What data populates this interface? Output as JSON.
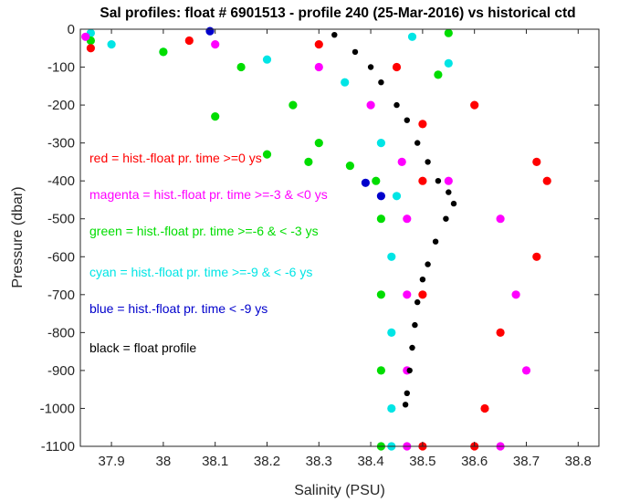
{
  "chart_data": {
    "type": "scatter",
    "title": "Sal profiles: float # 6901513 - profile 240 (25-Mar-2016) vs historical ctd",
    "xlabel": "Salinity (PSU)",
    "ylabel": "Pressure (dbar)",
    "xlim": [
      37.84,
      38.84
    ],
    "ylim": [
      -1100,
      0
    ],
    "x_ticks": [
      "37.9",
      "38",
      "38.1",
      "38.2",
      "38.3",
      "38.4",
      "38.5",
      "38.6",
      "38.7",
      "38.8"
    ],
    "y_ticks": [
      "0",
      "-100",
      "-200",
      "-300",
      "-400",
      "-500",
      "-600",
      "-700",
      "-800",
      "-900",
      "-1000",
      "-1100"
    ],
    "legend_placement": "inside-left",
    "legend": [
      {
        "text": "red = hist.-float pr. time >=0 ys",
        "color": "#ff0000"
      },
      {
        "text": "magenta = hist.-float pr. time >=-3 & <0 ys",
        "color": "#ff00ff"
      },
      {
        "text": "green = hist.-float pr. time >=-6 & < -3 ys",
        "color": "#00dd00"
      },
      {
        "text": "cyan = hist.-float pr. time >=-9 & < -6 ys",
        "color": "#00e5e5"
      },
      {
        "text": "blue = hist.-float pr. time < -9 ys",
        "color": "#0000cc"
      },
      {
        "text": "black = float profile",
        "color": "#000000"
      }
    ],
    "series": [
      {
        "color": "#0000cc",
        "values": [
          [
            38.39,
            -405
          ],
          [
            38.42,
            -440
          ],
          [
            38.09,
            -5
          ]
        ]
      },
      {
        "color": "#00e5e5",
        "values": [
          [
            37.86,
            -10
          ],
          [
            37.9,
            -40
          ],
          [
            38.0,
            -60
          ],
          [
            38.2,
            -80
          ],
          [
            38.35,
            -140
          ],
          [
            38.42,
            -300
          ],
          [
            38.45,
            -440
          ],
          [
            38.44,
            -600
          ],
          [
            38.44,
            -800
          ],
          [
            38.44,
            -1000
          ],
          [
            38.44,
            -1100
          ],
          [
            38.48,
            -20
          ],
          [
            38.55,
            -90
          ]
        ]
      },
      {
        "color": "#00dd00",
        "values": [
          [
            37.86,
            -30
          ],
          [
            38.0,
            -60
          ],
          [
            38.15,
            -100
          ],
          [
            38.25,
            -200
          ],
          [
            38.3,
            -300
          ],
          [
            38.36,
            -360
          ],
          [
            38.41,
            -400
          ],
          [
            38.42,
            -500
          ],
          [
            38.42,
            -700
          ],
          [
            38.42,
            -900
          ],
          [
            38.42,
            -1100
          ],
          [
            38.1,
            -230
          ],
          [
            38.2,
            -330
          ],
          [
            38.28,
            -350
          ],
          [
            38.55,
            -10
          ],
          [
            38.53,
            -120
          ]
        ]
      },
      {
        "color": "#ff00ff",
        "values": [
          [
            37.85,
            -20
          ],
          [
            38.1,
            -40
          ],
          [
            38.3,
            -100
          ],
          [
            38.4,
            -200
          ],
          [
            38.46,
            -350
          ],
          [
            38.47,
            -500
          ],
          [
            38.47,
            -700
          ],
          [
            38.47,
            -900
          ],
          [
            38.47,
            -1100
          ],
          [
            38.55,
            -400
          ],
          [
            38.65,
            -500
          ],
          [
            38.68,
            -700
          ],
          [
            38.7,
            -900
          ],
          [
            38.65,
            -1100
          ]
        ]
      },
      {
        "color": "#ff0000",
        "values": [
          [
            37.86,
            -50
          ],
          [
            38.05,
            -30
          ],
          [
            38.3,
            -40
          ],
          [
            38.45,
            -100
          ],
          [
            38.5,
            -250
          ],
          [
            38.5,
            -400
          ],
          [
            38.5,
            -700
          ],
          [
            38.5,
            -1100
          ],
          [
            38.6,
            -200
          ],
          [
            38.72,
            -350
          ],
          [
            38.74,
            -400
          ],
          [
            38.72,
            -600
          ],
          [
            38.65,
            -800
          ],
          [
            38.62,
            -1000
          ],
          [
            38.6,
            -1100
          ]
        ]
      },
      {
        "color": "#000000",
        "values": [
          [
            38.33,
            -15
          ],
          [
            38.37,
            -60
          ],
          [
            38.4,
            -100
          ],
          [
            38.42,
            -140
          ],
          [
            38.45,
            -200
          ],
          [
            38.47,
            -240
          ],
          [
            38.49,
            -300
          ],
          [
            38.51,
            -350
          ],
          [
            38.53,
            -400
          ],
          [
            38.55,
            -430
          ],
          [
            38.56,
            -460
          ],
          [
            38.545,
            -500
          ],
          [
            38.525,
            -560
          ],
          [
            38.51,
            -620
          ],
          [
            38.5,
            -660
          ],
          [
            38.49,
            -720
          ],
          [
            38.485,
            -780
          ],
          [
            38.48,
            -840
          ],
          [
            38.475,
            -900
          ],
          [
            38.47,
            -960
          ],
          [
            38.467,
            -990
          ]
        ]
      }
    ]
  }
}
